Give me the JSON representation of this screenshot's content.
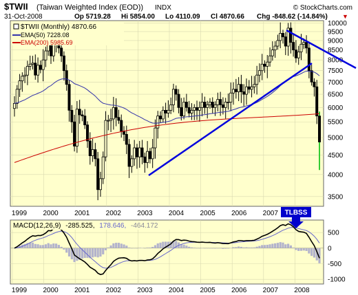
{
  "header": {
    "symbol": "$TWII",
    "name": "(Taiwan Weighted Index (EOD))",
    "exchange": "INDX",
    "date": "31-Oct-2008",
    "op": "Op 5719.28",
    "hi": "Hi 5854.00",
    "lo": "Lo 4110.09",
    "cl": "Cl 4870.66",
    "chg": "Chg -848.62 (-14.84%)",
    "chg_arrow": "▼",
    "brand": "© StockCharts.com"
  },
  "legend": {
    "price": "$TWII (Monthly) 4870.66",
    "ema50": "EMA(50) 7228.08",
    "ema200": "EMA(200) 5985.69",
    "macd_label": "MACD(12,26,9)",
    "macd_v1": "-285.525,",
    "macd_v2": "178.646,",
    "macd_v3": "-464.172"
  },
  "annotation": {
    "label": "TLBSS"
  },
  "colors": {
    "background": "#ffffcc",
    "ema50": "#3333aa",
    "ema200": "#cc0000",
    "trendline": "#0000dd",
    "macd_line": "#000000",
    "signal_line": "#6666cc",
    "histogram": "#b3b3cc",
    "last_candle": "#33cc33",
    "chg_text": "#cc0000"
  },
  "chart_data": {
    "type": "candlestick-monthly",
    "x_years": [
      "1999",
      "2000",
      "2001",
      "2002",
      "2003",
      "2004",
      "2005",
      "2006",
      "2007",
      "2008"
    ],
    "price_ticks": [
      3500,
      4000,
      4500,
      5000,
      5500,
      6000,
      6500,
      7000,
      7500,
      8000,
      8500,
      9000,
      9500,
      10000
    ],
    "price_range": [
      3300,
      10150
    ],
    "macd_ticks": [
      500,
      0,
      -500,
      -1000
    ],
    "macd_range": [
      -1150,
      900
    ],
    "closes": [
      6150,
      6700,
      7050,
      7250,
      7300,
      7700,
      7800,
      7850,
      7300,
      7750,
      7550,
      8000,
      8450,
      8950,
      8200,
      9150,
      9000,
      8600,
      8200,
      7500,
      6900,
      5900,
      5500,
      4750,
      5940,
      5740,
      5700,
      5400,
      4900,
      4480,
      4650,
      4400,
      3650,
      3900,
      4450,
      5550,
      5550,
      5600,
      6000,
      5650,
      5550,
      5200,
      5100,
      4800,
      4200,
      4400,
      4700,
      4450,
      4700,
      4450,
      4300,
      4600,
      4400,
      4700,
      5300,
      5700,
      5600,
      5900,
      5800,
      5900,
      6100,
      6700,
      6500,
      6000,
      5700,
      6200,
      6000,
      5800,
      5900,
      6000,
      5900,
      6000,
      6200,
      6000,
      6100,
      6200,
      6000,
      6100,
      6300,
      6100,
      6000,
      6200,
      6200,
      6550,
      6700,
      6600,
      6900,
      6600,
      6500,
      6800,
      6700,
      6800,
      6900,
      7300,
      7500,
      7800,
      7700,
      7900,
      8200,
      8500,
      8700,
      9000,
      9400,
      9200,
      8700,
      9700,
      8900,
      8500,
      8100,
      8400,
      8800,
      8900,
      8600,
      7500,
      7000,
      6800,
      5700,
      4870
    ]
  }
}
